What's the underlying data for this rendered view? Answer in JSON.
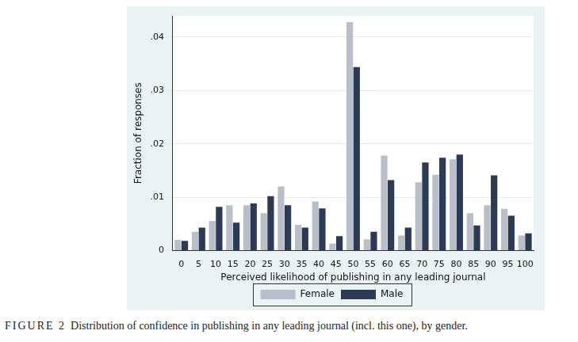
{
  "chart_data": {
    "type": "bar",
    "x_label": "Perceived likelihood of publishing in any leading journal",
    "y_label": "Fraction of responses",
    "caption_label": "FIGURE 2",
    "caption": "Distribution of confidence in publishing in any leading journal (incl. this one), by gender.",
    "categories": [
      0,
      5,
      10,
      15,
      20,
      25,
      30,
      35,
      40,
      45,
      50,
      55,
      60,
      65,
      70,
      75,
      80,
      85,
      90,
      95,
      100
    ],
    "series": [
      {
        "name": "Female",
        "color": "#b9bfca",
        "values": [
          0.002,
          0.0035,
          0.0055,
          0.0085,
          0.0085,
          0.007,
          0.012,
          0.0048,
          0.0092,
          0.0013,
          0.0428,
          0.0021,
          0.0178,
          0.0028,
          0.0128,
          0.0142,
          0.0171,
          0.007,
          0.0085,
          0.0078,
          0.0028
        ]
      },
      {
        "name": "Male",
        "color": "#2c3a56",
        "values": [
          0.0018,
          0.0043,
          0.0082,
          0.0052,
          0.0088,
          0.0102,
          0.0085,
          0.0043,
          0.0079,
          0.0027,
          0.0344,
          0.0035,
          0.0132,
          0.0043,
          0.0165,
          0.0174,
          0.018,
          0.0047,
          0.0141,
          0.0065,
          0.0032
        ]
      }
    ],
    "ylim": [
      0,
      0.044
    ],
    "yticks": [
      0,
      {
        "value": 0.01,
        "label": ".01"
      },
      {
        "value": 0.02,
        "label": ".02"
      },
      {
        "value": 0.03,
        "label": ".03"
      },
      {
        "value": 0.04,
        "label": ".04"
      }
    ],
    "grid": true,
    "legend": "bottom"
  }
}
